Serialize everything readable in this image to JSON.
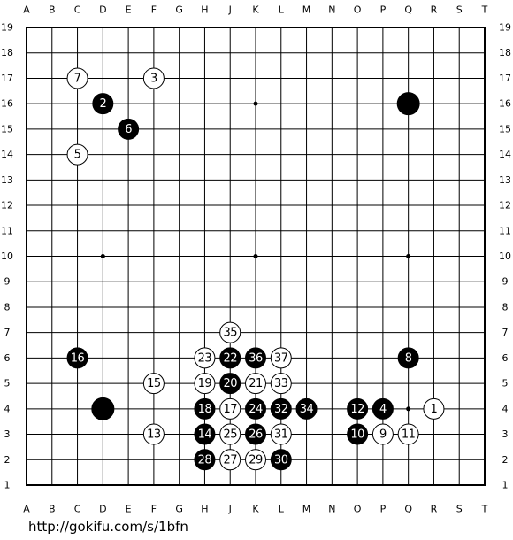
{
  "board": {
    "columns": [
      "A",
      "B",
      "C",
      "D",
      "E",
      "F",
      "G",
      "H",
      "J",
      "K",
      "L",
      "M",
      "N",
      "O",
      "P",
      "Q",
      "R",
      "S",
      "T"
    ],
    "rows": [
      19,
      18,
      17,
      16,
      15,
      14,
      13,
      12,
      11,
      10,
      9,
      8,
      7,
      6,
      5,
      4,
      3,
      2,
      1
    ],
    "stones": [
      {
        "color": "white",
        "number": 7,
        "col": "C",
        "row": 17
      },
      {
        "color": "white",
        "number": 3,
        "col": "F",
        "row": 17
      },
      {
        "color": "black",
        "number": 2,
        "col": "D",
        "row": 16
      },
      {
        "color": "black",
        "col": "Q",
        "row": 16
      },
      {
        "color": "black",
        "number": 6,
        "col": "E",
        "row": 15
      },
      {
        "color": "white",
        "number": 5,
        "col": "C",
        "row": 14
      },
      {
        "color": "white",
        "number": 35,
        "col": "J",
        "row": 7
      },
      {
        "color": "black",
        "number": 16,
        "col": "C",
        "row": 6
      },
      {
        "color": "white",
        "number": 23,
        "col": "H",
        "row": 6
      },
      {
        "color": "black",
        "number": 22,
        "col": "J",
        "row": 6
      },
      {
        "color": "black",
        "number": 36,
        "col": "K",
        "row": 6
      },
      {
        "color": "white",
        "number": 37,
        "col": "L",
        "row": 6
      },
      {
        "color": "black",
        "number": 8,
        "col": "Q",
        "row": 6
      },
      {
        "color": "white",
        "number": 15,
        "col": "F",
        "row": 5
      },
      {
        "color": "white",
        "number": 19,
        "col": "H",
        "row": 5
      },
      {
        "color": "black",
        "number": 20,
        "col": "J",
        "row": 5
      },
      {
        "color": "white",
        "number": 21,
        "col": "K",
        "row": 5
      },
      {
        "color": "white",
        "number": 33,
        "col": "L",
        "row": 5
      },
      {
        "color": "black",
        "col": "D",
        "row": 4
      },
      {
        "color": "black",
        "number": 18,
        "col": "H",
        "row": 4
      },
      {
        "color": "white",
        "number": 17,
        "col": "J",
        "row": 4
      },
      {
        "color": "black",
        "number": 24,
        "col": "K",
        "row": 4
      },
      {
        "color": "black",
        "number": 32,
        "col": "L",
        "row": 4
      },
      {
        "color": "black",
        "number": 34,
        "col": "M",
        "row": 4
      },
      {
        "color": "black",
        "number": 12,
        "col": "O",
        "row": 4
      },
      {
        "color": "black",
        "number": 4,
        "col": "P",
        "row": 4
      },
      {
        "color": "white",
        "number": 1,
        "col": "R",
        "row": 4
      },
      {
        "color": "white",
        "number": 13,
        "col": "F",
        "row": 3
      },
      {
        "color": "black",
        "number": 14,
        "col": "H",
        "row": 3
      },
      {
        "color": "white",
        "number": 25,
        "col": "J",
        "row": 3
      },
      {
        "color": "black",
        "number": 26,
        "col": "K",
        "row": 3
      },
      {
        "color": "white",
        "number": 31,
        "col": "L",
        "row": 3
      },
      {
        "color": "black",
        "number": 10,
        "col": "O",
        "row": 3
      },
      {
        "color": "white",
        "number": 9,
        "col": "P",
        "row": 3
      },
      {
        "color": "white",
        "number": 11,
        "col": "Q",
        "row": 3
      },
      {
        "color": "black",
        "number": 28,
        "col": "H",
        "row": 2
      },
      {
        "color": "white",
        "number": 27,
        "col": "J",
        "row": 2
      },
      {
        "color": "white",
        "number": 29,
        "col": "K",
        "row": 2
      },
      {
        "color": "black",
        "number": 30,
        "col": "L",
        "row": 2
      }
    ]
  },
  "footer": {
    "url": "http://gokifu.com/s/1bfn"
  }
}
